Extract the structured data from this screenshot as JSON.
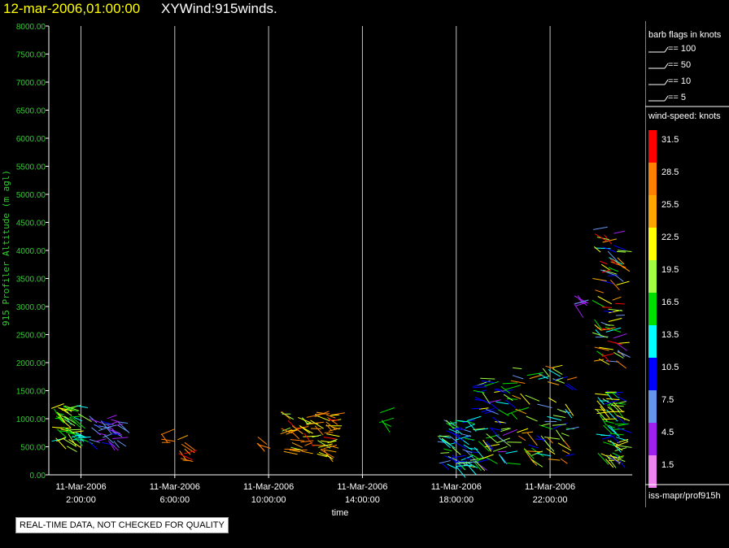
{
  "header": {
    "timestamp": "12-mar-2006,01:00:00",
    "title": "XYWind:915winds."
  },
  "disclaimer": "REAL-TIME DATA, NOT CHECKED FOR QUALITY",
  "legend": {
    "barb_title": "barb flags in knots",
    "barb_entries": [
      "== 100",
      "== 50",
      "== 10",
      "== 5"
    ],
    "speed_title": "wind-speed: knots",
    "speed_bins": [
      {
        "label": "31.5",
        "color": "#ff0000"
      },
      {
        "label": "28.5",
        "color": "#ff8000"
      },
      {
        "label": "25.5",
        "color": "#ffa500"
      },
      {
        "label": "22.5",
        "color": "#ffff00"
      },
      {
        "label": "19.5",
        "color": "#a0ff40"
      },
      {
        "label": "16.5",
        "color": "#00e000"
      },
      {
        "label": "13.5",
        "color": "#00ffff"
      },
      {
        "label": "10.5",
        "color": "#0000ff"
      },
      {
        "label": "7.5",
        "color": "#6495ed"
      },
      {
        "label": "4.5",
        "color": "#a020f0"
      },
      {
        "label": "1.5",
        "color": "#ee82ee"
      }
    ],
    "source": "iss-mapr/prof915h"
  },
  "chart_data": {
    "type": "scatter",
    "ylabel": "915 Profiler Altitude (m agl)",
    "xlabel": "time",
    "ylim": [
      0,
      8000
    ],
    "xlim": [
      0.63,
      25.5
    ],
    "yticks": [
      "0.00",
      "500.00",
      "1000.00",
      "1500.00",
      "2000.00",
      "2500.00",
      "3000.00",
      "3500.00",
      "4000.00",
      "4500.00",
      "5000.00",
      "5500.00",
      "6000.00",
      "6500.00",
      "7000.00",
      "7500.00",
      "8000.00"
    ],
    "xticks": [
      {
        "x": 2,
        "date": "11-Mar-2006",
        "time": "2:00:00"
      },
      {
        "x": 6,
        "date": "11-Mar-2006",
        "time": "6:00:00"
      },
      {
        "x": 10,
        "date": "11-Mar-2006",
        "time": "10:00:00"
      },
      {
        "x": 14,
        "date": "11-Mar-2006",
        "time": "14:00:00"
      },
      {
        "x": 18,
        "date": "11-Mar-2006",
        "time": "18:00:00"
      },
      {
        "x": 22,
        "date": "11-Mar-2006",
        "time": "22:00:00"
      }
    ],
    "grid": "vertical",
    "clusters": [
      {
        "x": [
          0.63,
          1.9
        ],
        "y": [
          500,
          1250
        ],
        "speed": [
          13,
          24
        ]
      },
      {
        "x": [
          2.3,
          3.6
        ],
        "y": [
          550,
          1050
        ],
        "speed": [
          3,
          10
        ]
      },
      {
        "x": [
          5.4,
          5.5
        ],
        "y": [
          550,
          750
        ],
        "speed": [
          28,
          30
        ]
      },
      {
        "x": [
          6.1,
          6.5
        ],
        "y": [
          250,
          650
        ],
        "speed": [
          26,
          32
        ]
      },
      {
        "x": [
          9.5,
          9.6
        ],
        "y": [
          500,
          700
        ],
        "speed": [
          27,
          29
        ]
      },
      {
        "x": [
          10.5,
          12.7
        ],
        "y": [
          350,
          1150
        ],
        "speed": [
          19,
          31
        ]
      },
      {
        "x": [
          14.7,
          14.9
        ],
        "y": [
          850,
          1150
        ],
        "speed": [
          15,
          17
        ]
      },
      {
        "x": [
          17.2,
          18.5
        ],
        "y": [
          150,
          1000
        ],
        "speed": [
          6,
          19
        ]
      },
      {
        "x": [
          18.5,
          20.2
        ],
        "y": [
          200,
          1750
        ],
        "speed": [
          4,
          22
        ]
      },
      {
        "x": [
          20.3,
          22.8
        ],
        "y": [
          200,
          2000
        ],
        "speed": [
          8,
          30
        ]
      },
      {
        "x": [
          22.7,
          23.3
        ],
        "y": [
          3000,
          3200
        ],
        "speed": [
          3,
          8
        ]
      },
      {
        "x": [
          23.8,
          24.9
        ],
        "y": [
          2000,
          4400
        ],
        "speed": [
          5,
          33
        ]
      },
      {
        "x": [
          23.9,
          24.9
        ],
        "y": [
          250,
          1500
        ],
        "speed": [
          10,
          24
        ]
      }
    ]
  }
}
